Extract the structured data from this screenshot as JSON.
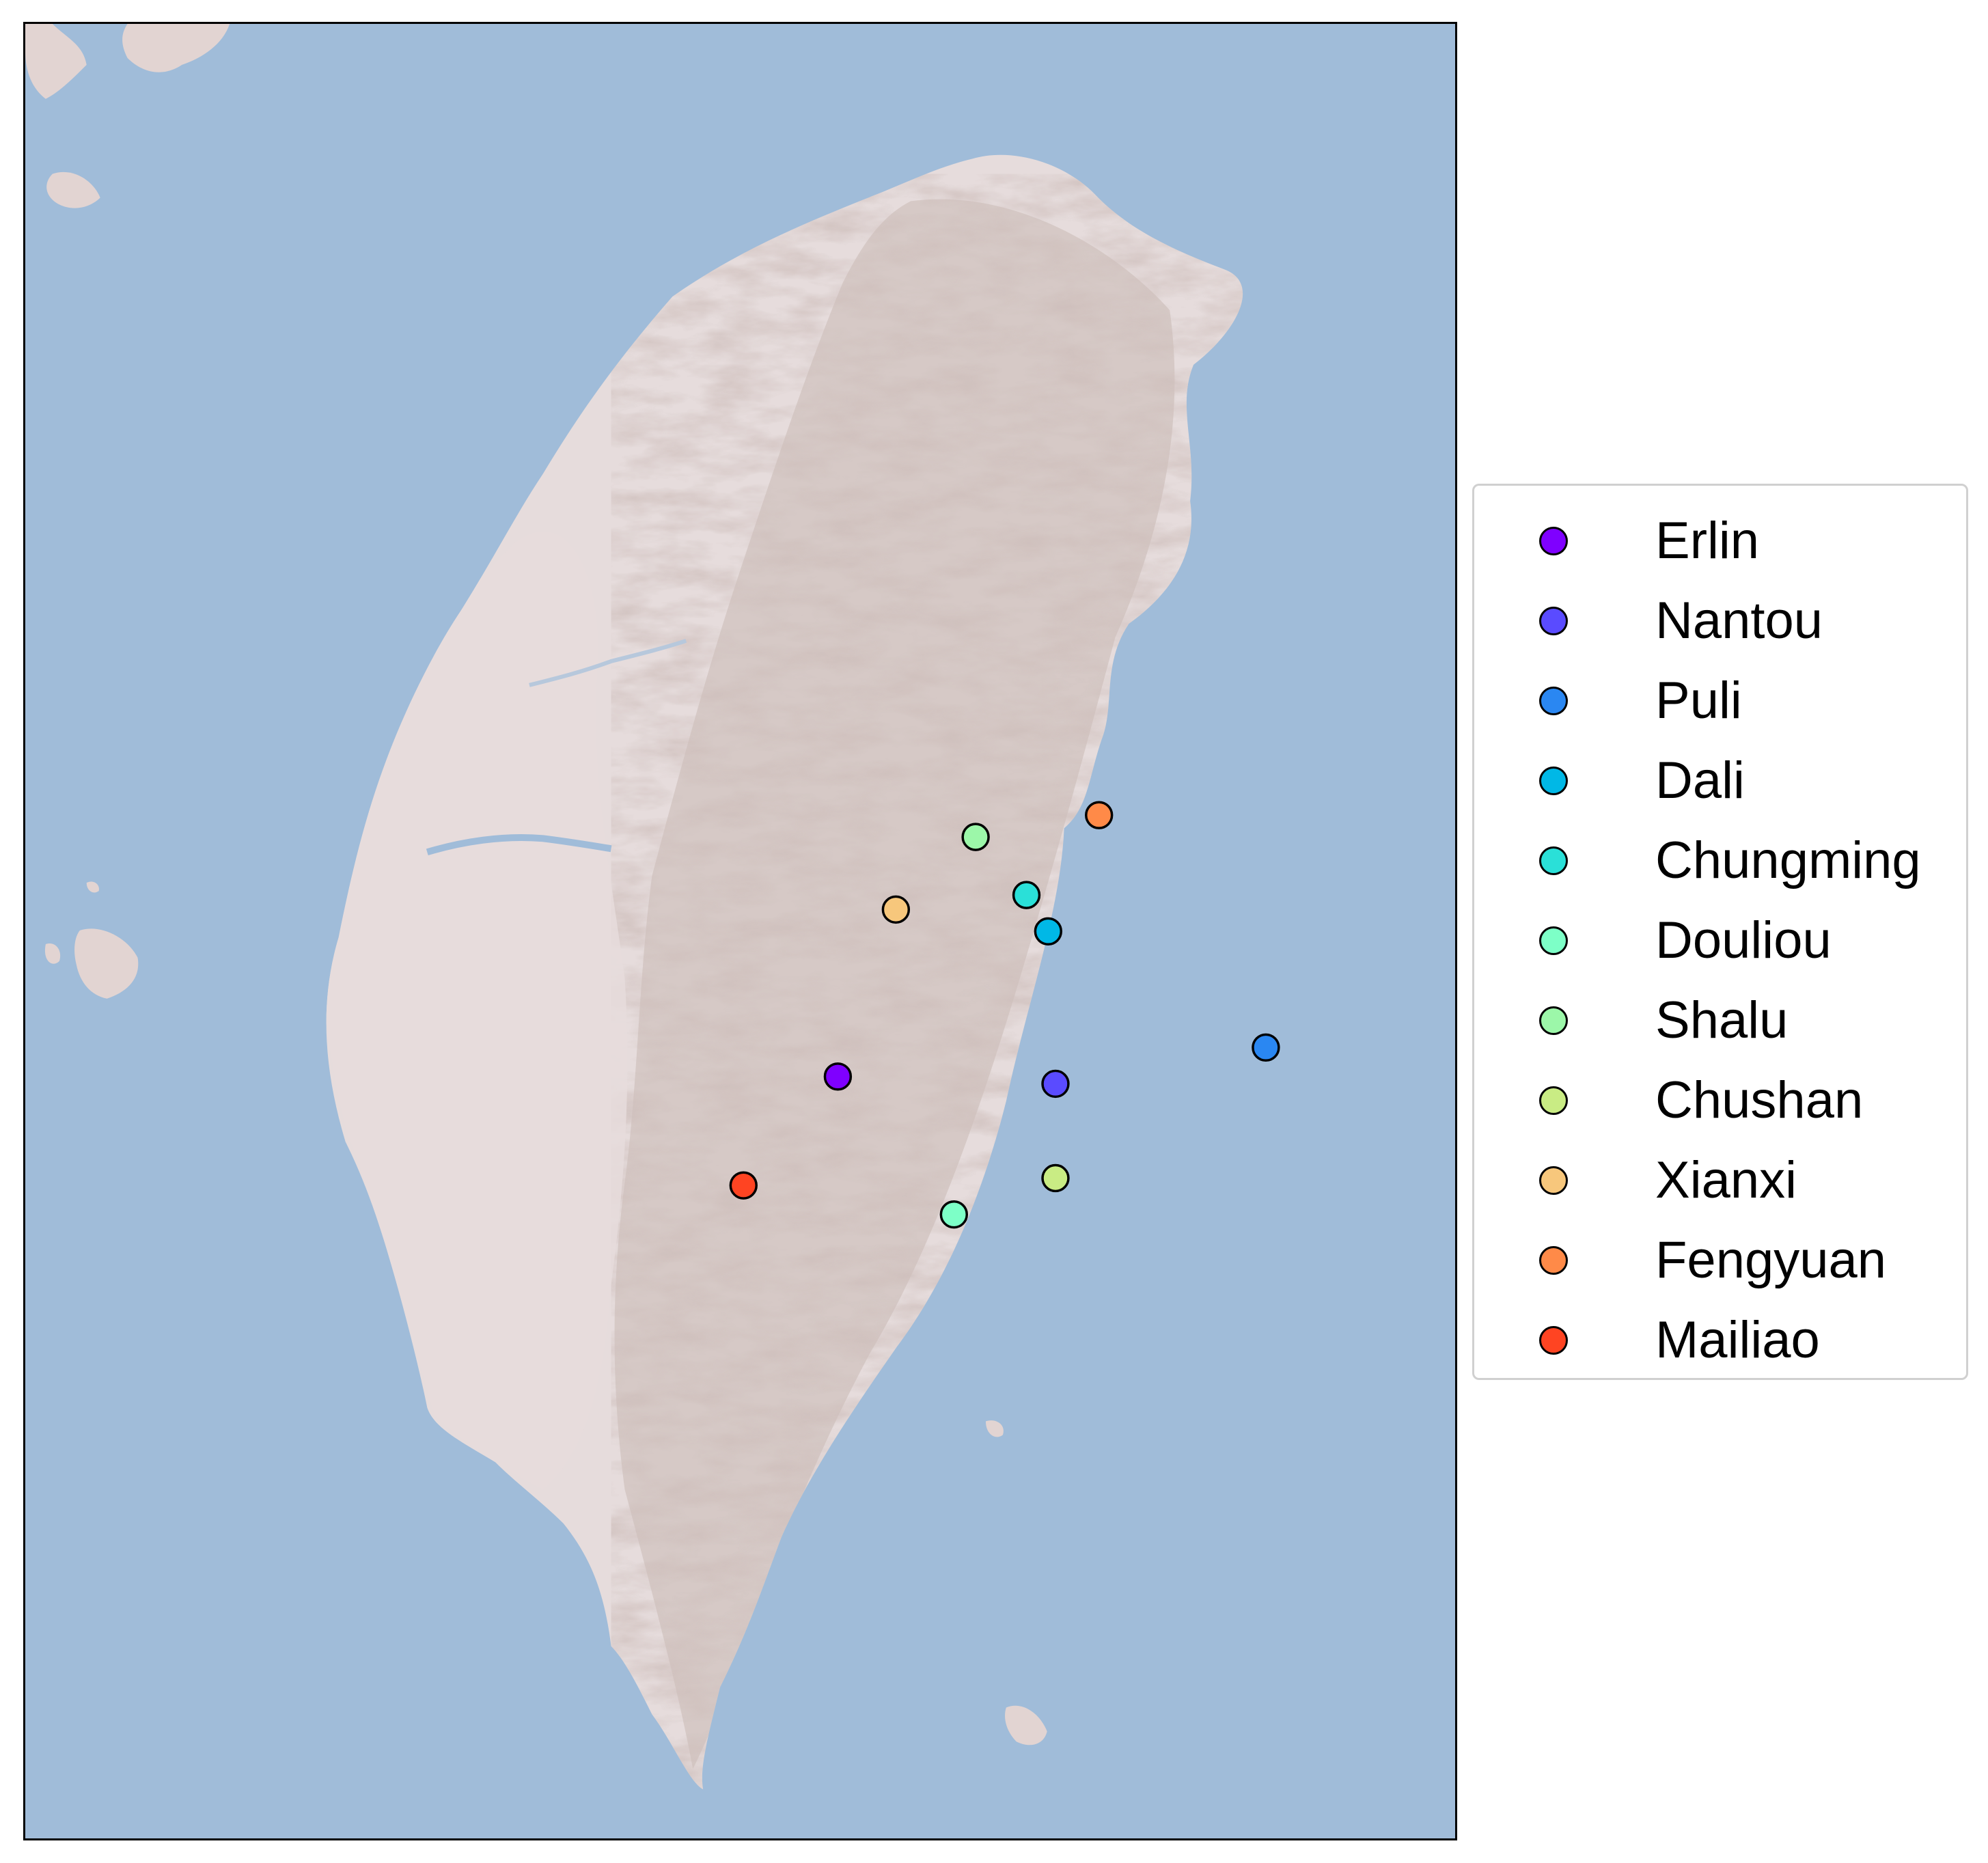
{
  "map": {
    "region": "Taiwan",
    "colors": {
      "sea": "#a0bcd9",
      "land": "#e6dcdc",
      "terrain_shade": "#b8a8a3",
      "marker_edge": "#000000"
    }
  },
  "stations": [
    {
      "name": "Erlin",
      "color": "#7f00ff",
      "lon": 120.38,
      "lat": 23.9
    },
    {
      "name": "Nantou",
      "color": "#5a4bff",
      "lon": 120.68,
      "lat": 23.89
    },
    {
      "name": "Puli",
      "color": "#2a87f2",
      "lon": 120.97,
      "lat": 23.94
    },
    {
      "name": "Dali",
      "color": "#00b8e6",
      "lon": 120.67,
      "lat": 24.1
    },
    {
      "name": "Chungming",
      "color": "#2ae0d8",
      "lon": 120.64,
      "lat": 24.15
    },
    {
      "name": "Douliou",
      "color": "#7dffc7",
      "lon": 120.54,
      "lat": 23.71
    },
    {
      "name": "Shalu",
      "color": "#9cf7a9",
      "lon": 120.57,
      "lat": 24.23
    },
    {
      "name": "Chushan",
      "color": "#c9ec84",
      "lon": 120.68,
      "lat": 23.76
    },
    {
      "name": "Xianxi",
      "color": "#f7c77c",
      "lon": 120.46,
      "lat": 24.13
    },
    {
      "name": "Fengyuan",
      "color": "#ff8a48",
      "lon": 120.74,
      "lat": 24.26
    },
    {
      "name": "Mailiao",
      "color": "#ff4422",
      "lon": 120.25,
      "lat": 23.75
    }
  ]
}
